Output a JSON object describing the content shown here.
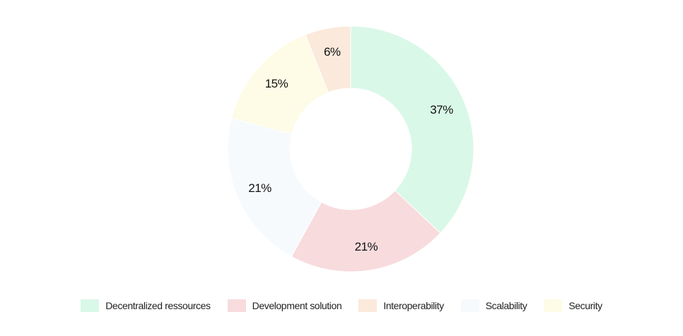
{
  "chart_data": {
    "type": "pie",
    "donut": true,
    "title": "",
    "legend_position": "bottom",
    "labels": [
      "Decentralized ressources",
      "Development solution",
      "Scalability",
      "Security",
      "Interoperability"
    ],
    "values": [
      37,
      21,
      21,
      15,
      6
    ],
    "value_labels": [
      "37%",
      "21%",
      "21%",
      "15%",
      "6%"
    ],
    "colors": [
      "#d9f8e8",
      "#f8dbdd",
      "#f6fafd",
      "#fefbe6",
      "#fbe9dc"
    ],
    "legend": [
      {
        "label": "Decentralized ressources",
        "color": "#d9f8e8"
      },
      {
        "label": "Development solution",
        "color": "#f8dbdd"
      },
      {
        "label": "Interoperability",
        "color": "#fbe9dc"
      },
      {
        "label": "Scalability",
        "color": "#f6fafd"
      },
      {
        "label": "Security",
        "color": "#fefbe6"
      }
    ]
  }
}
